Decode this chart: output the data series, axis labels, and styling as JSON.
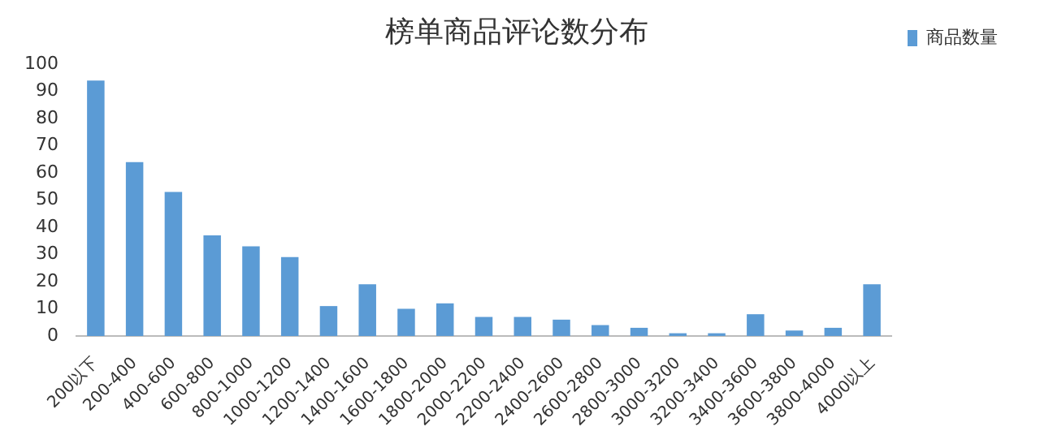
{
  "chart_data": {
    "type": "bar",
    "title": "榜单商品评论数分布",
    "categories": [
      "200以下",
      "200-400",
      "400-600",
      "600-800",
      "800-1000",
      "1000-1200",
      "1200-1400",
      "1400-1600",
      "1600-1800",
      "1800-2000",
      "2000-2200",
      "2200-2400",
      "2400-2600",
      "2600-2800",
      "2800-3000",
      "3000-3200",
      "3200-3400",
      "3400-3600",
      "3600-3800",
      "3800-4000",
      "4000以上"
    ],
    "series": [
      {
        "name": "商品数量",
        "color": "#5b9bd5",
        "values": [
          94,
          64,
          53,
          37,
          33,
          29,
          11,
          19,
          10,
          12,
          7,
          7,
          6,
          4,
          3,
          1,
          1,
          8,
          2,
          3,
          19
        ]
      }
    ],
    "ylim": [
      0,
      100
    ],
    "yticks": [
      0,
      10,
      20,
      30,
      40,
      50,
      60,
      70,
      80,
      90,
      100
    ],
    "grid": false,
    "legend": "top right"
  }
}
